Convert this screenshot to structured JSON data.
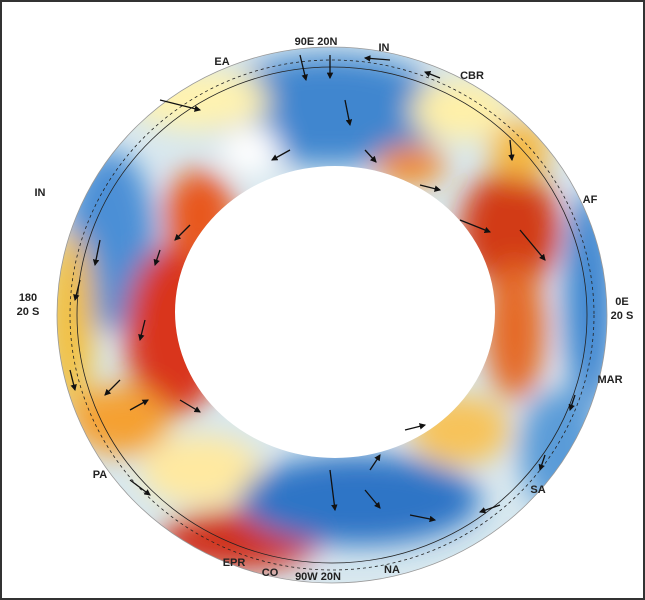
{
  "figure": {
    "labels": [
      "90E 20N",
      "IN",
      "CBR",
      "EA",
      "AF",
      "IN",
      "180",
      "20 S",
      "0E",
      "20 S",
      "MAR",
      "SA",
      "PA",
      "EPR",
      "CO",
      "90W 20N",
      "NA"
    ]
  }
}
